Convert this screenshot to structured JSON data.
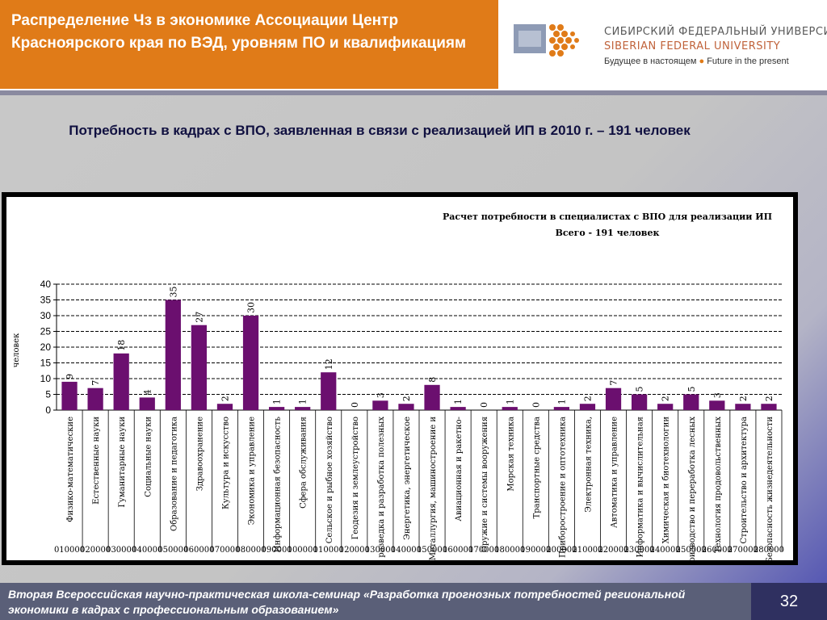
{
  "header": {
    "title": "Распределение Чз в экономике Ассоциации Центр Красноярского края по ВЭД, уровням ПО и квалификациям",
    "logo": {
      "text_ru": "СИБИРСКИЙ ФЕДЕРАЛЬНЫЙ УНИВЕРСИТЕТ",
      "text_en": "SIBERIAN FEDERAL UNIVERSITY",
      "tagline_ru": "Будущее в настоящем",
      "tagline_en": "Future in the present"
    }
  },
  "subtitle": "Потребность в кадрах с ВПО, заявленная в связи с реализацией ИП в 2010 г. – 191 человек",
  "chart_data": {
    "type": "bar",
    "title_line1": "Расчет потребности в специалистах с ВПО для реализации ИП",
    "title_line2": "Всего - 191 человек",
    "ylabel": "человек",
    "ylim": [
      0,
      40
    ],
    "yticks": [
      0,
      5,
      10,
      15,
      20,
      25,
      30,
      35,
      40
    ],
    "grid": true,
    "bar_color": "#6b0f6f",
    "categories": [
      "Физико-математические",
      "Естественные науки",
      "Гуманитарные науки",
      "Социальные науки",
      "Образование и педагогика",
      "Здравоохранение",
      "Культура и искусство",
      "Экономика и управление",
      "Информационная безопасность",
      "Сфера обслуживания",
      "Сельское и рыбное хозяйство",
      "Геодезия и землеустройство",
      "Геология, разведка и разработка полезных",
      "Энергетика, энергетическое",
      "Металлургия, машиностроение и",
      "Авиационная и ракетно-",
      "Оружие и системы вооружения",
      "Морская техника",
      "Транспортные средства",
      "Приборостроение и оптотехника",
      "Электронная техника,",
      "Автоматика и управление",
      "Информатика и вычислительная",
      "Химическая и биотехнологии",
      "Воспроизводство и переработка лесных",
      "Технология продовольственных",
      "Строительство и архитектура",
      "Безопасность жизнедеятельности"
    ],
    "codes": [
      "010000",
      "020000",
      "030000",
      "040000",
      "050000",
      "060000",
      "070000",
      "080000",
      "090000",
      "100000",
      "110000",
      "120000",
      "130000",
      "140000",
      "150000",
      "160000",
      "170000",
      "180000",
      "190000",
      "200000",
      "210000",
      "220000",
      "230000",
      "240000",
      "250000",
      "260000",
      "270000",
      "280000"
    ],
    "values": [
      9,
      7,
      18,
      4,
      35,
      27,
      2,
      30,
      1,
      1,
      12,
      0,
      3,
      2,
      8,
      1,
      0,
      1,
      0,
      1,
      2,
      7,
      5,
      2,
      5,
      3,
      2,
      2
    ]
  },
  "footer": {
    "text": "Вторая Всероссийская научно-практическая школа-семинар «Разработка прогнозных потребностей региональной экономики в кадрах с профессиональным образованием»",
    "page_number": "32"
  }
}
